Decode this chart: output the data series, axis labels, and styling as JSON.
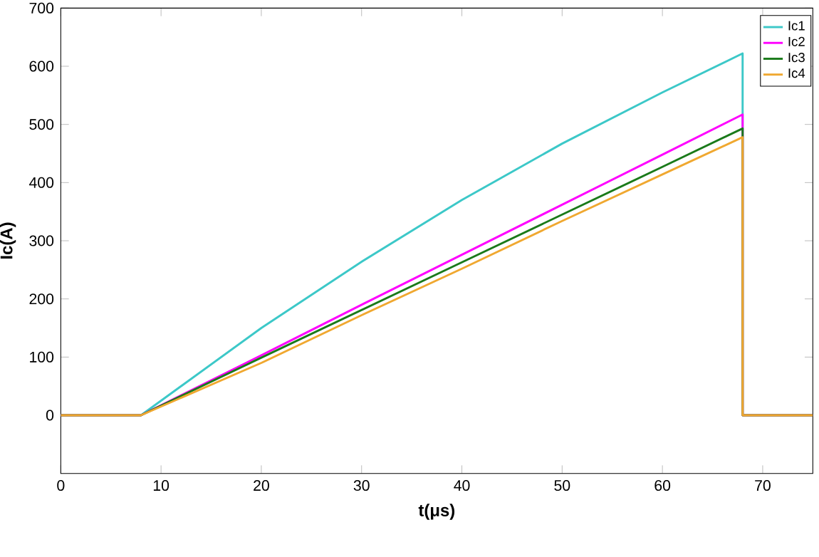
{
  "chart_data": {
    "type": "line",
    "xlabel": "t(μs)",
    "ylabel": "Ic(A)",
    "xlim": [
      0,
      75
    ],
    "ylim": [
      -100,
      700
    ],
    "xticks": [
      0,
      10,
      20,
      30,
      40,
      50,
      60,
      70
    ],
    "yticks": [
      0,
      100,
      200,
      300,
      400,
      500,
      600,
      700
    ],
    "legend": "top right",
    "grid": false,
    "marker": "none",
    "line_style": "solid",
    "x": [
      0,
      8,
      20,
      30,
      40,
      50,
      60,
      68,
      68,
      75
    ],
    "series": [
      {
        "name": "Ic1",
        "color": "#3cc8c8",
        "values": [
          0,
          0,
          150,
          264,
          370,
          467,
          555,
          622,
          0,
          0
        ]
      },
      {
        "name": "Ic2",
        "color": "#ff00ff",
        "values": [
          0,
          0,
          103,
          190,
          276,
          362,
          448,
          517,
          0,
          0
        ]
      },
      {
        "name": "Ic3",
        "color": "#1a7a1a",
        "values": [
          0,
          0,
          99,
          181,
          263,
          345,
          427,
          493,
          0,
          0
        ]
      },
      {
        "name": "Ic4",
        "color": "#f0a830",
        "values": [
          0,
          0,
          90,
          172,
          252,
          334,
          414,
          478,
          0,
          0
        ]
      }
    ]
  }
}
